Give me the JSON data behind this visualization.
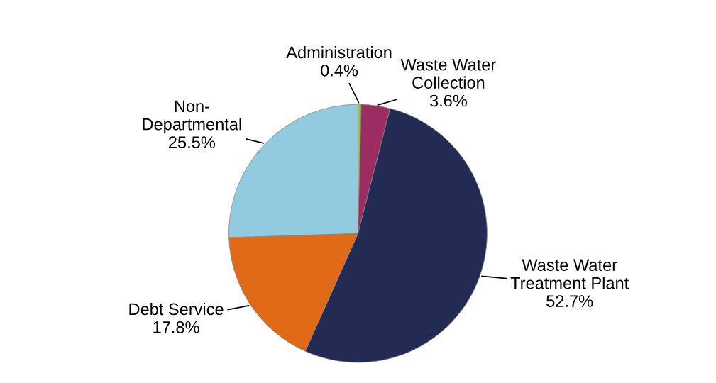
{
  "chart_data": {
    "type": "pie",
    "categories": [
      "Administration",
      "Waste Water\nCollection",
      "Waste Water\nTreatment Plant",
      "Debt Service",
      "Non-\nDepartmental"
    ],
    "values": [
      0.4,
      3.6,
      52.7,
      17.8,
      25.5
    ],
    "value_labels": [
      "0.4%",
      "3.6%",
      "52.7%",
      "17.8%",
      "25.5%"
    ],
    "colors": [
      "#8dc63f",
      "#9b2d62",
      "#232b55",
      "#e06a18",
      "#92cbdf"
    ],
    "legend": false
  }
}
